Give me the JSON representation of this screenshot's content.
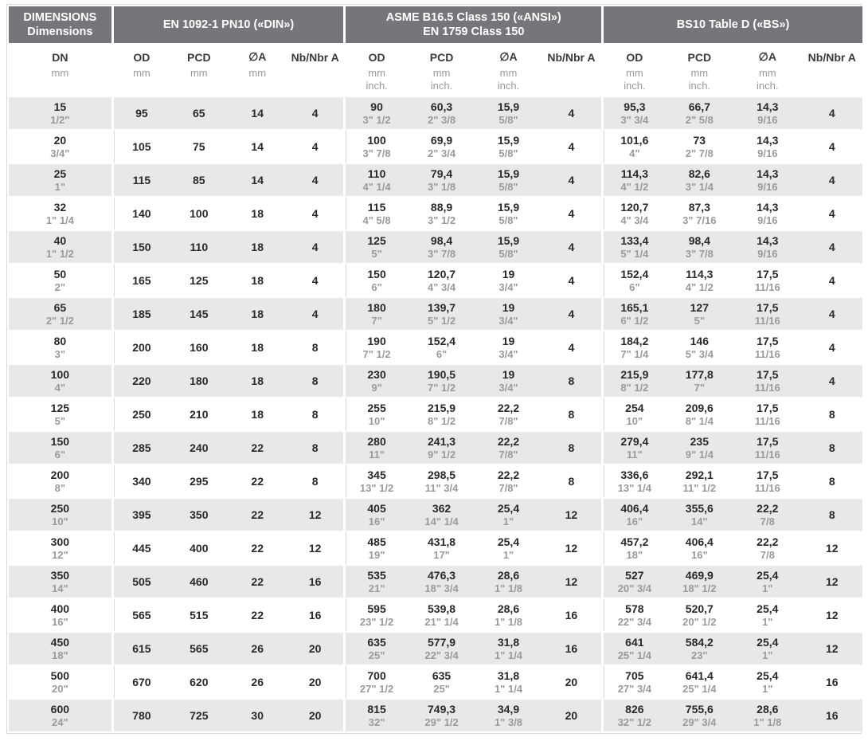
{
  "table": {
    "groups": [
      {
        "line1": "DIMENSIONS",
        "line2": "Dimensions"
      },
      {
        "line1": "EN 1092-1 PN10 («DIN»)",
        "line2": ""
      },
      {
        "line1": "ASME B16.5 Class 150 («ANSI»)",
        "line2": "EN 1759 Class 150"
      },
      {
        "line1": "BS10 Table D («BS»)",
        "line2": ""
      }
    ],
    "columns": {
      "dn": "DN",
      "od": "OD",
      "pcd": "PCD",
      "dia": "∅A",
      "nb": "Nb/Nbr A"
    },
    "units": {
      "mm": "mm",
      "inch": "inch."
    },
    "rows": [
      {
        "dn_mm": "15",
        "dn_in": "1/2\"",
        "din": {
          "od": "95",
          "pcd": "65",
          "a": "14",
          "nb": "4"
        },
        "ansi": {
          "od_mm": "90",
          "od_in": "3\" 1/2",
          "pcd_mm": "60,3",
          "pcd_in": "2\" 3/8",
          "a_mm": "15,9",
          "a_in": "5/8\"",
          "nb": "4"
        },
        "bs": {
          "od_mm": "95,3",
          "od_in": "3\" 3/4",
          "pcd_mm": "66,7",
          "pcd_in": "2\" 5/8",
          "a_mm": "14,3",
          "a_in": "9/16",
          "nb": "4"
        }
      },
      {
        "dn_mm": "20",
        "dn_in": "3/4\"",
        "din": {
          "od": "105",
          "pcd": "75",
          "a": "14",
          "nb": "4"
        },
        "ansi": {
          "od_mm": "100",
          "od_in": "3\" 7/8",
          "pcd_mm": "69,9",
          "pcd_in": "2\" 3/4",
          "a_mm": "15,9",
          "a_in": "5/8\"",
          "nb": "4"
        },
        "bs": {
          "od_mm": "101,6",
          "od_in": "4\"",
          "pcd_mm": "73",
          "pcd_in": "2\" 7/8",
          "a_mm": "14,3",
          "a_in": "9/16",
          "nb": "4"
        }
      },
      {
        "dn_mm": "25",
        "dn_in": "1\"",
        "din": {
          "od": "115",
          "pcd": "85",
          "a": "14",
          "nb": "4"
        },
        "ansi": {
          "od_mm": "110",
          "od_in": "4\" 1/4",
          "pcd_mm": "79,4",
          "pcd_in": "3\" 1/8",
          "a_mm": "15,9",
          "a_in": "5/8\"",
          "nb": "4"
        },
        "bs": {
          "od_mm": "114,3",
          "od_in": "4\" 1/2",
          "pcd_mm": "82,6",
          "pcd_in": "3\" 1/4",
          "a_mm": "14,3",
          "a_in": "9/16",
          "nb": "4"
        }
      },
      {
        "dn_mm": "32",
        "dn_in": "1\" 1/4",
        "din": {
          "od": "140",
          "pcd": "100",
          "a": "18",
          "nb": "4"
        },
        "ansi": {
          "od_mm": "115",
          "od_in": "4\" 5/8",
          "pcd_mm": "88,9",
          "pcd_in": "3\" 1/2",
          "a_mm": "15,9",
          "a_in": "5/8\"",
          "nb": "4"
        },
        "bs": {
          "od_mm": "120,7",
          "od_in": "4\" 3/4",
          "pcd_mm": "87,3",
          "pcd_in": "3\" 7/16",
          "a_mm": "14,3",
          "a_in": "9/16",
          "nb": "4"
        }
      },
      {
        "dn_mm": "40",
        "dn_in": "1\" 1/2",
        "din": {
          "od": "150",
          "pcd": "110",
          "a": "18",
          "nb": "4"
        },
        "ansi": {
          "od_mm": "125",
          "od_in": "5\"",
          "pcd_mm": "98,4",
          "pcd_in": "3\" 7/8",
          "a_mm": "15,9",
          "a_in": "5/8\"",
          "nb": "4"
        },
        "bs": {
          "od_mm": "133,4",
          "od_in": "5\" 1/4",
          "pcd_mm": "98,4",
          "pcd_in": "3\" 7/8",
          "a_mm": "14,3",
          "a_in": "9/16",
          "nb": "4"
        }
      },
      {
        "dn_mm": "50",
        "dn_in": "2\"",
        "din": {
          "od": "165",
          "pcd": "125",
          "a": "18",
          "nb": "4"
        },
        "ansi": {
          "od_mm": "150",
          "od_in": "6\"",
          "pcd_mm": "120,7",
          "pcd_in": "4\" 3/4",
          "a_mm": "19",
          "a_in": "3/4\"",
          "nb": "4"
        },
        "bs": {
          "od_mm": "152,4",
          "od_in": "6\"",
          "pcd_mm": "114,3",
          "pcd_in": "4\" 1/2",
          "a_mm": "17,5",
          "a_in": "11/16",
          "nb": "4"
        }
      },
      {
        "dn_mm": "65",
        "dn_in": "2\" 1/2",
        "din": {
          "od": "185",
          "pcd": "145",
          "a": "18",
          "nb": "4"
        },
        "ansi": {
          "od_mm": "180",
          "od_in": "7\"",
          "pcd_mm": "139,7",
          "pcd_in": "5\" 1/2",
          "a_mm": "19",
          "a_in": "3/4\"",
          "nb": "4"
        },
        "bs": {
          "od_mm": "165,1",
          "od_in": "6\" 1/2",
          "pcd_mm": "127",
          "pcd_in": "5\"",
          "a_mm": "17,5",
          "a_in": "11/16",
          "nb": "4"
        }
      },
      {
        "dn_mm": "80",
        "dn_in": "3\"",
        "din": {
          "od": "200",
          "pcd": "160",
          "a": "18",
          "nb": "8"
        },
        "ansi": {
          "od_mm": "190",
          "od_in": "7\" 1/2",
          "pcd_mm": "152,4",
          "pcd_in": "6\"",
          "a_mm": "19",
          "a_in": "3/4\"",
          "nb": "4"
        },
        "bs": {
          "od_mm": "184,2",
          "od_in": "7\" 1/4",
          "pcd_mm": "146",
          "pcd_in": "5\" 3/4",
          "a_mm": "17,5",
          "a_in": "11/16",
          "nb": "4"
        }
      },
      {
        "dn_mm": "100",
        "dn_in": "4\"",
        "din": {
          "od": "220",
          "pcd": "180",
          "a": "18",
          "nb": "8"
        },
        "ansi": {
          "od_mm": "230",
          "od_in": "9\"",
          "pcd_mm": "190,5",
          "pcd_in": "7\" 1/2",
          "a_mm": "19",
          "a_in": "3/4\"",
          "nb": "8"
        },
        "bs": {
          "od_mm": "215,9",
          "od_in": "8\" 1/2",
          "pcd_mm": "177,8",
          "pcd_in": "7\"",
          "a_mm": "17,5",
          "a_in": "11/16",
          "nb": "4"
        }
      },
      {
        "dn_mm": "125",
        "dn_in": "5\"",
        "din": {
          "od": "250",
          "pcd": "210",
          "a": "18",
          "nb": "8"
        },
        "ansi": {
          "od_mm": "255",
          "od_in": "10\"",
          "pcd_mm": "215,9",
          "pcd_in": "8\" 1/2",
          "a_mm": "22,2",
          "a_in": "7/8\"",
          "nb": "8"
        },
        "bs": {
          "od_mm": "254",
          "od_in": "10\"",
          "pcd_mm": "209,6",
          "pcd_in": "8\" 1/4",
          "a_mm": "17,5",
          "a_in": "11/16",
          "nb": "8"
        }
      },
      {
        "dn_mm": "150",
        "dn_in": "6\"",
        "din": {
          "od": "285",
          "pcd": "240",
          "a": "22",
          "nb": "8"
        },
        "ansi": {
          "od_mm": "280",
          "od_in": "11\"",
          "pcd_mm": "241,3",
          "pcd_in": "9\" 1/2",
          "a_mm": "22,2",
          "a_in": "7/8\"",
          "nb": "8"
        },
        "bs": {
          "od_mm": "279,4",
          "od_in": "11\"",
          "pcd_mm": "235",
          "pcd_in": "9\" 1/4",
          "a_mm": "17,5",
          "a_in": "11/16",
          "nb": "8"
        }
      },
      {
        "dn_mm": "200",
        "dn_in": "8\"",
        "din": {
          "od": "340",
          "pcd": "295",
          "a": "22",
          "nb": "8"
        },
        "ansi": {
          "od_mm": "345",
          "od_in": "13\" 1/2",
          "pcd_mm": "298,5",
          "pcd_in": "11\" 3/4",
          "a_mm": "22,2",
          "a_in": "7/8\"",
          "nb": "8"
        },
        "bs": {
          "od_mm": "336,6",
          "od_in": "13\" 1/4",
          "pcd_mm": "292,1",
          "pcd_in": "11\" 1/2",
          "a_mm": "17,5",
          "a_in": "11/16",
          "nb": "8"
        }
      },
      {
        "dn_mm": "250",
        "dn_in": "10\"",
        "din": {
          "od": "395",
          "pcd": "350",
          "a": "22",
          "nb": "12"
        },
        "ansi": {
          "od_mm": "405",
          "od_in": "16\"",
          "pcd_mm": "362",
          "pcd_in": "14\" 1/4",
          "a_mm": "25,4",
          "a_in": "1\"",
          "nb": "12"
        },
        "bs": {
          "od_mm": "406,4",
          "od_in": "16\"",
          "pcd_mm": "355,6",
          "pcd_in": "14\"",
          "a_mm": "22,2",
          "a_in": "7/8",
          "nb": "8"
        }
      },
      {
        "dn_mm": "300",
        "dn_in": "12\"",
        "din": {
          "od": "445",
          "pcd": "400",
          "a": "22",
          "nb": "12"
        },
        "ansi": {
          "od_mm": "485",
          "od_in": "19\"",
          "pcd_mm": "431,8",
          "pcd_in": "17\"",
          "a_mm": "25,4",
          "a_in": "1\"",
          "nb": "12"
        },
        "bs": {
          "od_mm": "457,2",
          "od_in": "18\"",
          "pcd_mm": "406,4",
          "pcd_in": "16\"",
          "a_mm": "22,2",
          "a_in": "7/8",
          "nb": "12"
        }
      },
      {
        "dn_mm": "350",
        "dn_in": "14\"",
        "din": {
          "od": "505",
          "pcd": "460",
          "a": "22",
          "nb": "16"
        },
        "ansi": {
          "od_mm": "535",
          "od_in": "21\"",
          "pcd_mm": "476,3",
          "pcd_in": "18\" 3/4",
          "a_mm": "28,6",
          "a_in": "1\" 1/8",
          "nb": "12"
        },
        "bs": {
          "od_mm": "527",
          "od_in": "20\" 3/4",
          "pcd_mm": "469,9",
          "pcd_in": "18\" 1/2",
          "a_mm": "25,4",
          "a_in": "1\"",
          "nb": "12"
        }
      },
      {
        "dn_mm": "400",
        "dn_in": "16\"",
        "din": {
          "od": "565",
          "pcd": "515",
          "a": "22",
          "nb": "16"
        },
        "ansi": {
          "od_mm": "595",
          "od_in": "23\" 1/2",
          "pcd_mm": "539,8",
          "pcd_in": "21\" 1/4",
          "a_mm": "28,6",
          "a_in": "1\" 1/8",
          "nb": "16"
        },
        "bs": {
          "od_mm": "578",
          "od_in": "22\" 3/4",
          "pcd_mm": "520,7",
          "pcd_in": "20\" 1/2",
          "a_mm": "25,4",
          "a_in": "1\"",
          "nb": "12"
        }
      },
      {
        "dn_mm": "450",
        "dn_in": "18\"",
        "din": {
          "od": "615",
          "pcd": "565",
          "a": "26",
          "nb": "20"
        },
        "ansi": {
          "od_mm": "635",
          "od_in": "25\"",
          "pcd_mm": "577,9",
          "pcd_in": "22\" 3/4",
          "a_mm": "31,8",
          "a_in": "1\" 1/4",
          "nb": "16"
        },
        "bs": {
          "od_mm": "641",
          "od_in": "25\" 1/4",
          "pcd_mm": "584,2",
          "pcd_in": "23\"",
          "a_mm": "25,4",
          "a_in": "1\"",
          "nb": "12"
        }
      },
      {
        "dn_mm": "500",
        "dn_in": "20\"",
        "din": {
          "od": "670",
          "pcd": "620",
          "a": "26",
          "nb": "20"
        },
        "ansi": {
          "od_mm": "700",
          "od_in": "27\" 1/2",
          "pcd_mm": "635",
          "pcd_in": "25\"",
          "a_mm": "31,8",
          "a_in": "1\" 1/4",
          "nb": "20"
        },
        "bs": {
          "od_mm": "705",
          "od_in": "27\" 3/4",
          "pcd_mm": "641,4",
          "pcd_in": "25\" 1/4",
          "a_mm": "25,4",
          "a_in": "1\"",
          "nb": "16"
        }
      },
      {
        "dn_mm": "600",
        "dn_in": "24\"",
        "din": {
          "od": "780",
          "pcd": "725",
          "a": "30",
          "nb": "20"
        },
        "ansi": {
          "od_mm": "815",
          "od_in": "32\"",
          "pcd_mm": "749,3",
          "pcd_in": "29\" 1/2",
          "a_mm": "34,9",
          "a_in": "1\" 3/8",
          "nb": "20"
        },
        "bs": {
          "od_mm": "826",
          "od_in": "32\" 1/2",
          "pcd_mm": "755,6",
          "pcd_in": "29\" 3/4",
          "a_mm": "28,6",
          "a_in": "1\" 1/8",
          "nb": "16"
        }
      }
    ]
  },
  "colors": {
    "header_bg": "#75767a",
    "header_text": "#ffffff",
    "row_alt_bg": "#e8e8e9",
    "text_primary": "#2b2826",
    "text_secondary": "#9a9a9c",
    "separator": "#ffffff"
  }
}
